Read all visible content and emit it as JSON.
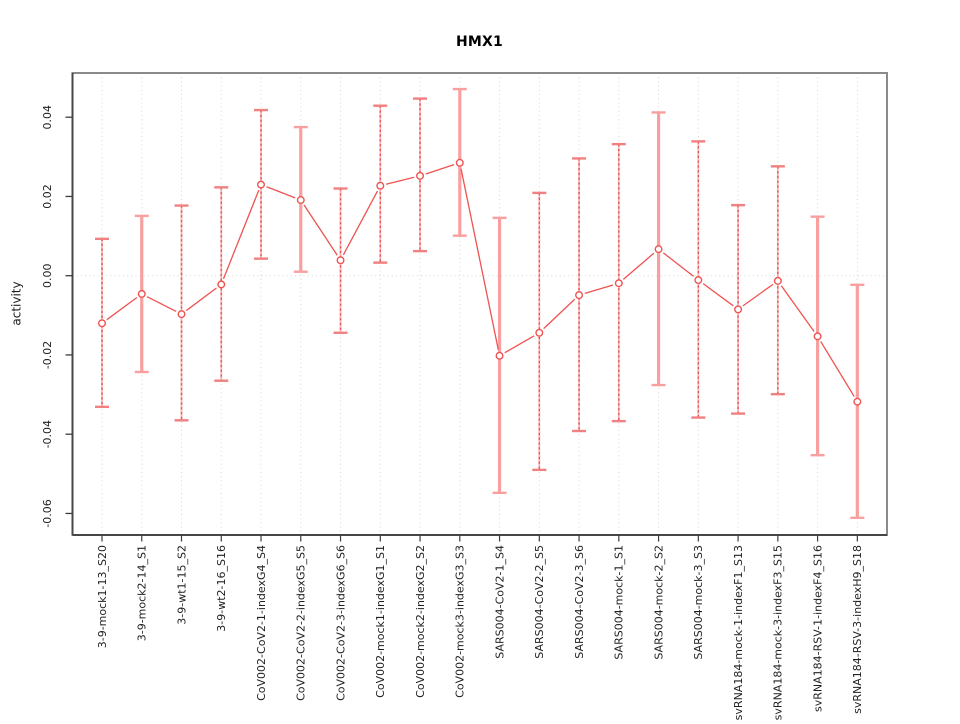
{
  "colors": {
    "point": "#ee5350",
    "series_line": "#ee5350",
    "error_bar_wide": "#f8a0a0",
    "error_bar_narrow_base": "#f8b4b4",
    "error_bar_narrow_dash": "#e85252",
    "error_bar_cap": "#f18080",
    "gridline": "#d6d6d6",
    "frame": "#8a8a8a",
    "axis": "#3c3c3c",
    "text": "#1f1f1f"
  },
  "chart_data": {
    "type": "line",
    "title": "HMX1",
    "xlabel": "",
    "ylabel": "activity",
    "legend": "none",
    "grid": "vertical dotted line per category; horizontal dotted line at y=0",
    "marker": "open-circle",
    "x_tick_rotation": -90,
    "y_tick_rotation": -90,
    "ylim": [
      -0.0652,
      0.0512
    ],
    "yticks": [
      -0.06,
      -0.04,
      -0.02,
      0.0,
      0.02,
      0.04
    ],
    "ytick_labels": [
      "-0.06",
      "-0.04",
      "-0.02",
      "0.00",
      "0.02",
      "0.04"
    ],
    "categories": [
      "3-9-mock1-13_S20",
      "3-9-mock2-14_S1",
      "3-9-wt1-15_S2",
      "3-9-wt2-16_S16",
      "CoV002-CoV2-1-indexG4_S4",
      "CoV002-CoV2-2-indexG5_S5",
      "CoV002-CoV2-3-indexG6_S6",
      "CoV002-mock1-indexG1_S1",
      "CoV002-mock2-indexG2_S2",
      "CoV002-mock3-indexG3_S3",
      "SARS004-CoV2-1_S4",
      "SARS004-CoV2-2_S5",
      "SARS004-CoV2-3_S6",
      "SARS004-mock-1_S1",
      "SARS004-mock-2_S2",
      "SARS004-mock-3_S3",
      "svRNA184-mock-1-indexF1_S13",
      "svRNA184-mock-3-indexF3_S15",
      "svRNA184-RSV-1-indexF4_S16",
      "svRNA184-RSV-3-indexH9_S18"
    ],
    "series": [
      {
        "name": "activity",
        "values": [
          -0.012,
          -0.0046,
          -0.0097,
          -0.0022,
          0.023,
          0.0191,
          0.0039,
          0.0227,
          0.0252,
          0.0285,
          -0.0202,
          -0.0144,
          -0.0049,
          -0.0019,
          0.0067,
          -0.0011,
          -0.0085,
          -0.0013,
          -0.0153,
          -0.0318
        ],
        "lower": [
          -0.0331,
          -0.0243,
          -0.0365,
          -0.0265,
          0.0043,
          0.001,
          -0.0144,
          0.0033,
          0.0062,
          0.0101,
          -0.0548,
          -0.049,
          -0.0392,
          -0.0367,
          -0.0276,
          -0.0358,
          -0.0348,
          -0.0299,
          -0.0453,
          -0.0611
        ],
        "upper": [
          0.0093,
          0.0151,
          0.0177,
          0.0223,
          0.0418,
          0.0375,
          0.022,
          0.0429,
          0.0447,
          0.0471,
          0.0146,
          0.0209,
          0.0296,
          0.0332,
          0.0412,
          0.0339,
          0.0178,
          0.0276,
          0.0149,
          -0.0023
        ]
      }
    ],
    "error_bar_styles": [
      "narrow",
      "wide",
      "narrow",
      "narrow",
      "narrow",
      "wide",
      "narrow",
      "narrow",
      "narrow",
      "wide",
      "wide",
      "narrow",
      "narrow",
      "narrow",
      "wide",
      "narrow",
      "narrow",
      "narrow",
      "wide",
      "wide"
    ]
  }
}
